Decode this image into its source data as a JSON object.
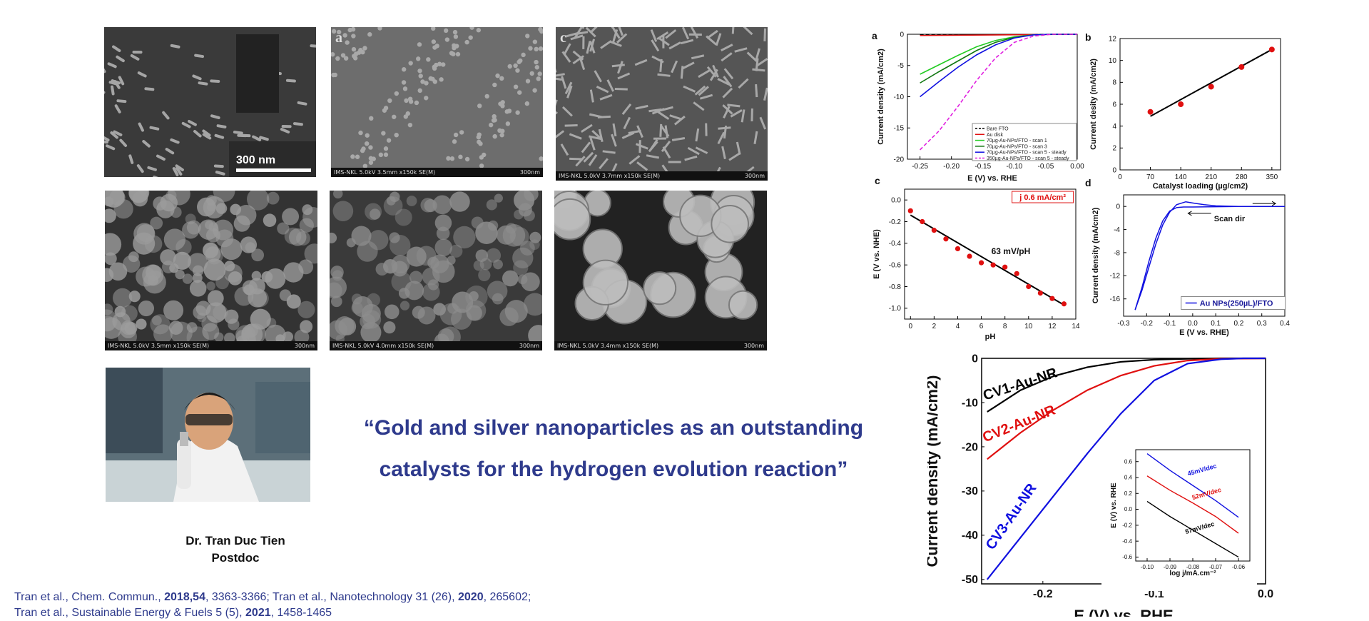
{
  "sem_images": [
    {
      "panel_letter": "",
      "scale_text": "300 nm",
      "info": "",
      "scale": ""
    },
    {
      "panel_letter": "a",
      "scale_text": "",
      "info": "IMS-NKL 5.0kV 3.5mm x150k SE(M)",
      "scale": "300nm"
    },
    {
      "panel_letter": "c",
      "scale_text": "",
      "info": "IMS-NKL 5.0kV 3.7mm x150k SE(M)",
      "scale": "300nm"
    },
    {
      "panel_letter": "",
      "scale_text": "",
      "info": "IMS-NKL 5.0kV 3.5mm x150k SE(M)",
      "scale": "300nm"
    },
    {
      "panel_letter": "",
      "scale_text": "",
      "info": "IMS-NKL 5.0kV 4.0mm x150k SE(M)",
      "scale": "300nm"
    },
    {
      "panel_letter": "",
      "scale_text": "",
      "info": "IMS-NKL 5.0kV 3.4mm x150k SE(M)",
      "scale": "300nm"
    }
  ],
  "quote": {
    "line1": "“Gold and silver nanoparticles as an outstanding",
    "line2": "catalysts for the hydrogen evolution reaction”"
  },
  "author": {
    "name": "Dr. Tran Duc Tien",
    "role": "Postdoc"
  },
  "references": {
    "r1_a": "Tran et al., Chem. Commun., ",
    "r1_b": "2018,54",
    "r1_c": ", 3363-3366; Tran et al., Nanotechnology 31 (26), ",
    "r1_d": "2020",
    "r1_e": ", 265602;",
    "r2_a": "Tran et al., Sustainable Energy & Fuels 5 (5), ",
    "r2_b": "2021",
    "r2_c": ", 1458-1465"
  },
  "colors": {
    "quote_blue": "#2e3a8c",
    "red": "#e01010",
    "blue": "#1010e0",
    "green": "#22cc22",
    "dark_green": "#117711",
    "magenta": "#e020e0"
  },
  "chart_data": [
    {
      "id": "a",
      "type": "line",
      "xlabel": "E (V) vs. RHE",
      "ylabel": "Current density (mA/cm2)",
      "xlim": [
        -0.27,
        0.0
      ],
      "ylim": [
        -20,
        0
      ],
      "xticks": [
        "-0.25",
        "-0.20",
        "-0.15",
        "-0.10",
        "-0.05",
        "0.00"
      ],
      "yticks": [
        "0",
        "-5",
        "-10",
        "-15",
        "-20"
      ],
      "legend": [
        "Bare FTO",
        "Au disk",
        "70µg-Au-NPs/FTO - scan 1",
        "70µg-Au-NPs/FTO - scan 3",
        "70µg-Au-NPs/FTO - scan 5 - steady",
        "350µg-Au-NPs/FTO - scan 5 - steady"
      ],
      "series": [
        {
          "name": "Bare FTO",
          "color": "#000000",
          "dash": true,
          "x": [
            -0.25,
            0.0
          ],
          "y": [
            -0.1,
            0
          ]
        },
        {
          "name": "Au disk",
          "color": "#e01010",
          "x": [
            -0.25,
            0.0
          ],
          "y": [
            -0.2,
            0
          ]
        },
        {
          "name": "70µg-Au-NPs/FTO - scan 1",
          "color": "#22cc22",
          "x": [
            -0.25,
            -0.22,
            -0.19,
            -0.16,
            -0.13,
            -0.1,
            -0.07,
            -0.04,
            0.0
          ],
          "y": [
            -6.4,
            -4.9,
            -3.4,
            -2.0,
            -1.0,
            -0.4,
            -0.1,
            0,
            0
          ]
        },
        {
          "name": "70µg-Au-NPs/FTO - scan 3",
          "color": "#117711",
          "x": [
            -0.25,
            -0.22,
            -0.19,
            -0.16,
            -0.13,
            -0.1,
            -0.07,
            -0.04,
            0.0
          ],
          "y": [
            -7.8,
            -6.0,
            -4.3,
            -2.6,
            -1.3,
            -0.5,
            -0.1,
            0,
            0
          ]
        },
        {
          "name": "70µg-Au-NPs/FTO - scan 5 - steady",
          "color": "#1010e0",
          "x": [
            -0.25,
            -0.22,
            -0.19,
            -0.16,
            -0.13,
            -0.1,
            -0.07,
            -0.04,
            0.0
          ],
          "y": [
            -10.0,
            -7.6,
            -5.3,
            -3.3,
            -1.7,
            -0.6,
            -0.1,
            0,
            0
          ]
        },
        {
          "name": "350µg-Au-NPs/FTO - scan 5 - steady",
          "color": "#e020e0",
          "dash": true,
          "x": [
            -0.25,
            -0.22,
            -0.19,
            -0.16,
            -0.13,
            -0.1,
            -0.07,
            -0.04,
            0.0
          ],
          "y": [
            -18.5,
            -15.5,
            -11.6,
            -7.4,
            -3.8,
            -1.3,
            -0.3,
            0,
            0
          ]
        }
      ]
    },
    {
      "id": "b",
      "type": "scatter",
      "xlabel": "Catalyst loading (µg/cm2)",
      "ylabel": "Current desity (mA/cm2)",
      "xlim": [
        0,
        370
      ],
      "ylim": [
        0,
        12
      ],
      "xticks": [
        "0",
        "70",
        "140",
        "210",
        "280",
        "350"
      ],
      "yticks": [
        "0",
        "2",
        "4",
        "6",
        "8",
        "10",
        "12"
      ],
      "points": {
        "x": [
          70,
          140,
          210,
          280,
          350
        ],
        "y": [
          5.3,
          6.0,
          7.6,
          9.4,
          11.0
        ]
      },
      "fit": {
        "x": [
          70,
          350
        ],
        "y": [
          4.9,
          11.0
        ]
      }
    },
    {
      "id": "c",
      "type": "scatter",
      "xlabel": "pH",
      "ylabel": "E (V vs. NHE)",
      "xlim": [
        -0.5,
        14
      ],
      "ylim": [
        -1.1,
        0.1
      ],
      "xticks": [
        "0",
        "2",
        "4",
        "6",
        "8",
        "10",
        "12",
        "14"
      ],
      "yticks": [
        "0.0",
        "-0.2",
        "-0.4",
        "-0.6",
        "-0.8",
        "-1.0"
      ],
      "annotation": "63 mV/pH",
      "box_label": "j 0.6 mA/cm²",
      "points": {
        "x": [
          0,
          1,
          2,
          3,
          4,
          5,
          6,
          7,
          8,
          9,
          10,
          11,
          12,
          13
        ],
        "y": [
          -0.1,
          -0.2,
          -0.28,
          -0.36,
          -0.45,
          -0.52,
          -0.58,
          -0.6,
          -0.62,
          -0.68,
          -0.8,
          -0.86,
          -0.91,
          -0.96
        ]
      },
      "fit": {
        "x": [
          0,
          13
        ],
        "y": [
          -0.14,
          -0.97
        ]
      }
    },
    {
      "id": "d",
      "type": "line",
      "xlabel": "E (V vs. RHE)",
      "ylabel": "Current density (mA/cm2)",
      "xlim": [
        -0.3,
        0.4
      ],
      "ylim": [
        -19,
        2
      ],
      "xticks": [
        "-0.3",
        "-0.2",
        "-0.1",
        "0.0",
        "0.1",
        "0.2",
        "0.3",
        "0.4"
      ],
      "yticks": [
        "0",
        "-4",
        "-8",
        "-12",
        "-16"
      ],
      "annotation": "Scan dir",
      "legend": [
        "Au NPs(250µL)/FTO"
      ],
      "series": [
        {
          "name": "Au NPs(250µL)/FTO",
          "color": "#1010e0",
          "x": [
            -0.25,
            -0.22,
            -0.19,
            -0.16,
            -0.13,
            -0.1,
            -0.07,
            -0.03,
            0.0,
            0.05,
            0.1,
            0.2,
            0.4
          ],
          "y": [
            -17.9,
            -14.5,
            -10.5,
            -6.5,
            -3.2,
            -1.0,
            0.3,
            0.8,
            0.6,
            0.3,
            0.1,
            0.0,
            0.0
          ]
        },
        {
          "name": "",
          "color": "#1010e0",
          "x": [
            -0.25,
            -0.22,
            -0.19,
            -0.16,
            -0.13,
            -0.1,
            -0.07,
            -0.04,
            0.0,
            0.1,
            0.2,
            0.4
          ],
          "y": [
            -17.9,
            -14.0,
            -9.5,
            -5.5,
            -2.5,
            -0.8,
            -0.2,
            -0.1,
            -0.1,
            -0.05,
            0.0,
            0.0
          ]
        }
      ]
    },
    {
      "id": "main",
      "type": "line",
      "xlabel": "E (V) vs. RHE",
      "ylabel": "Current density (mA/cm2)",
      "xlim": [
        -0.255,
        0.0
      ],
      "ylim": [
        -51,
        0
      ],
      "xticks": [
        "-0.2",
        "-0.1",
        "0.0"
      ],
      "yticks": [
        "0",
        "-10",
        "-20",
        "-30",
        "-40",
        "-50"
      ],
      "series": [
        {
          "name": "CV1-Au-NR",
          "color": "#000000",
          "x": [
            -0.25,
            -0.22,
            -0.19,
            -0.16,
            -0.13,
            -0.1,
            -0.07,
            -0.04,
            0.0
          ],
          "y": [
            -12.1,
            -7.2,
            -4.0,
            -2.0,
            -0.8,
            -0.3,
            -0.1,
            0,
            0
          ]
        },
        {
          "name": "CV2-Au-NR",
          "color": "#e01010",
          "x": [
            -0.25,
            -0.22,
            -0.19,
            -0.16,
            -0.13,
            -0.1,
            -0.07,
            -0.04,
            0.0
          ],
          "y": [
            -22.8,
            -16.8,
            -11.6,
            -7.2,
            -3.9,
            -1.7,
            -0.5,
            -0.1,
            0
          ]
        },
        {
          "name": "CV3-Au-NR",
          "color": "#1010e0",
          "x": [
            -0.25,
            -0.22,
            -0.19,
            -0.16,
            -0.13,
            -0.1,
            -0.07,
            -0.04,
            -0.02,
            0.0
          ],
          "y": [
            -50.0,
            -40.5,
            -31.0,
            -21.5,
            -12.5,
            -5.0,
            -1.2,
            -0.2,
            0,
            0
          ]
        }
      ],
      "inset": {
        "xlabel": "log j/mA.cm⁻²",
        "ylabel": "E (V) vs. RHE",
        "xlim": [
          -0.105,
          -0.055
        ],
        "ylim": [
          -0.65,
          0.75
        ],
        "xticks": [
          "-0.10",
          "-0.09",
          "-0.08",
          "-0.07",
          "-0.06"
        ],
        "yticks": [
          "0.6",
          "0.4",
          "0.2",
          "0.0",
          "-0.2",
          "-0.4",
          "-0.6"
        ],
        "series": [
          {
            "name": "45mV/dec",
            "color": "#1010e0",
            "x": [
              -0.1,
              -0.09,
              -0.08,
              -0.07,
              -0.06
            ],
            "y": [
              0.7,
              0.49,
              0.3,
              0.11,
              -0.1
            ]
          },
          {
            "name": "52mV/dec",
            "color": "#e01010",
            "x": [
              -0.1,
              -0.09,
              -0.08,
              -0.07,
              -0.06
            ],
            "y": [
              0.42,
              0.24,
              0.08,
              -0.09,
              -0.3
            ]
          },
          {
            "name": "57mV/dec",
            "color": "#000000",
            "x": [
              -0.1,
              -0.09,
              -0.08,
              -0.07,
              -0.06
            ],
            "y": [
              0.1,
              -0.09,
              -0.26,
              -0.43,
              -0.6
            ]
          }
        ]
      }
    }
  ]
}
